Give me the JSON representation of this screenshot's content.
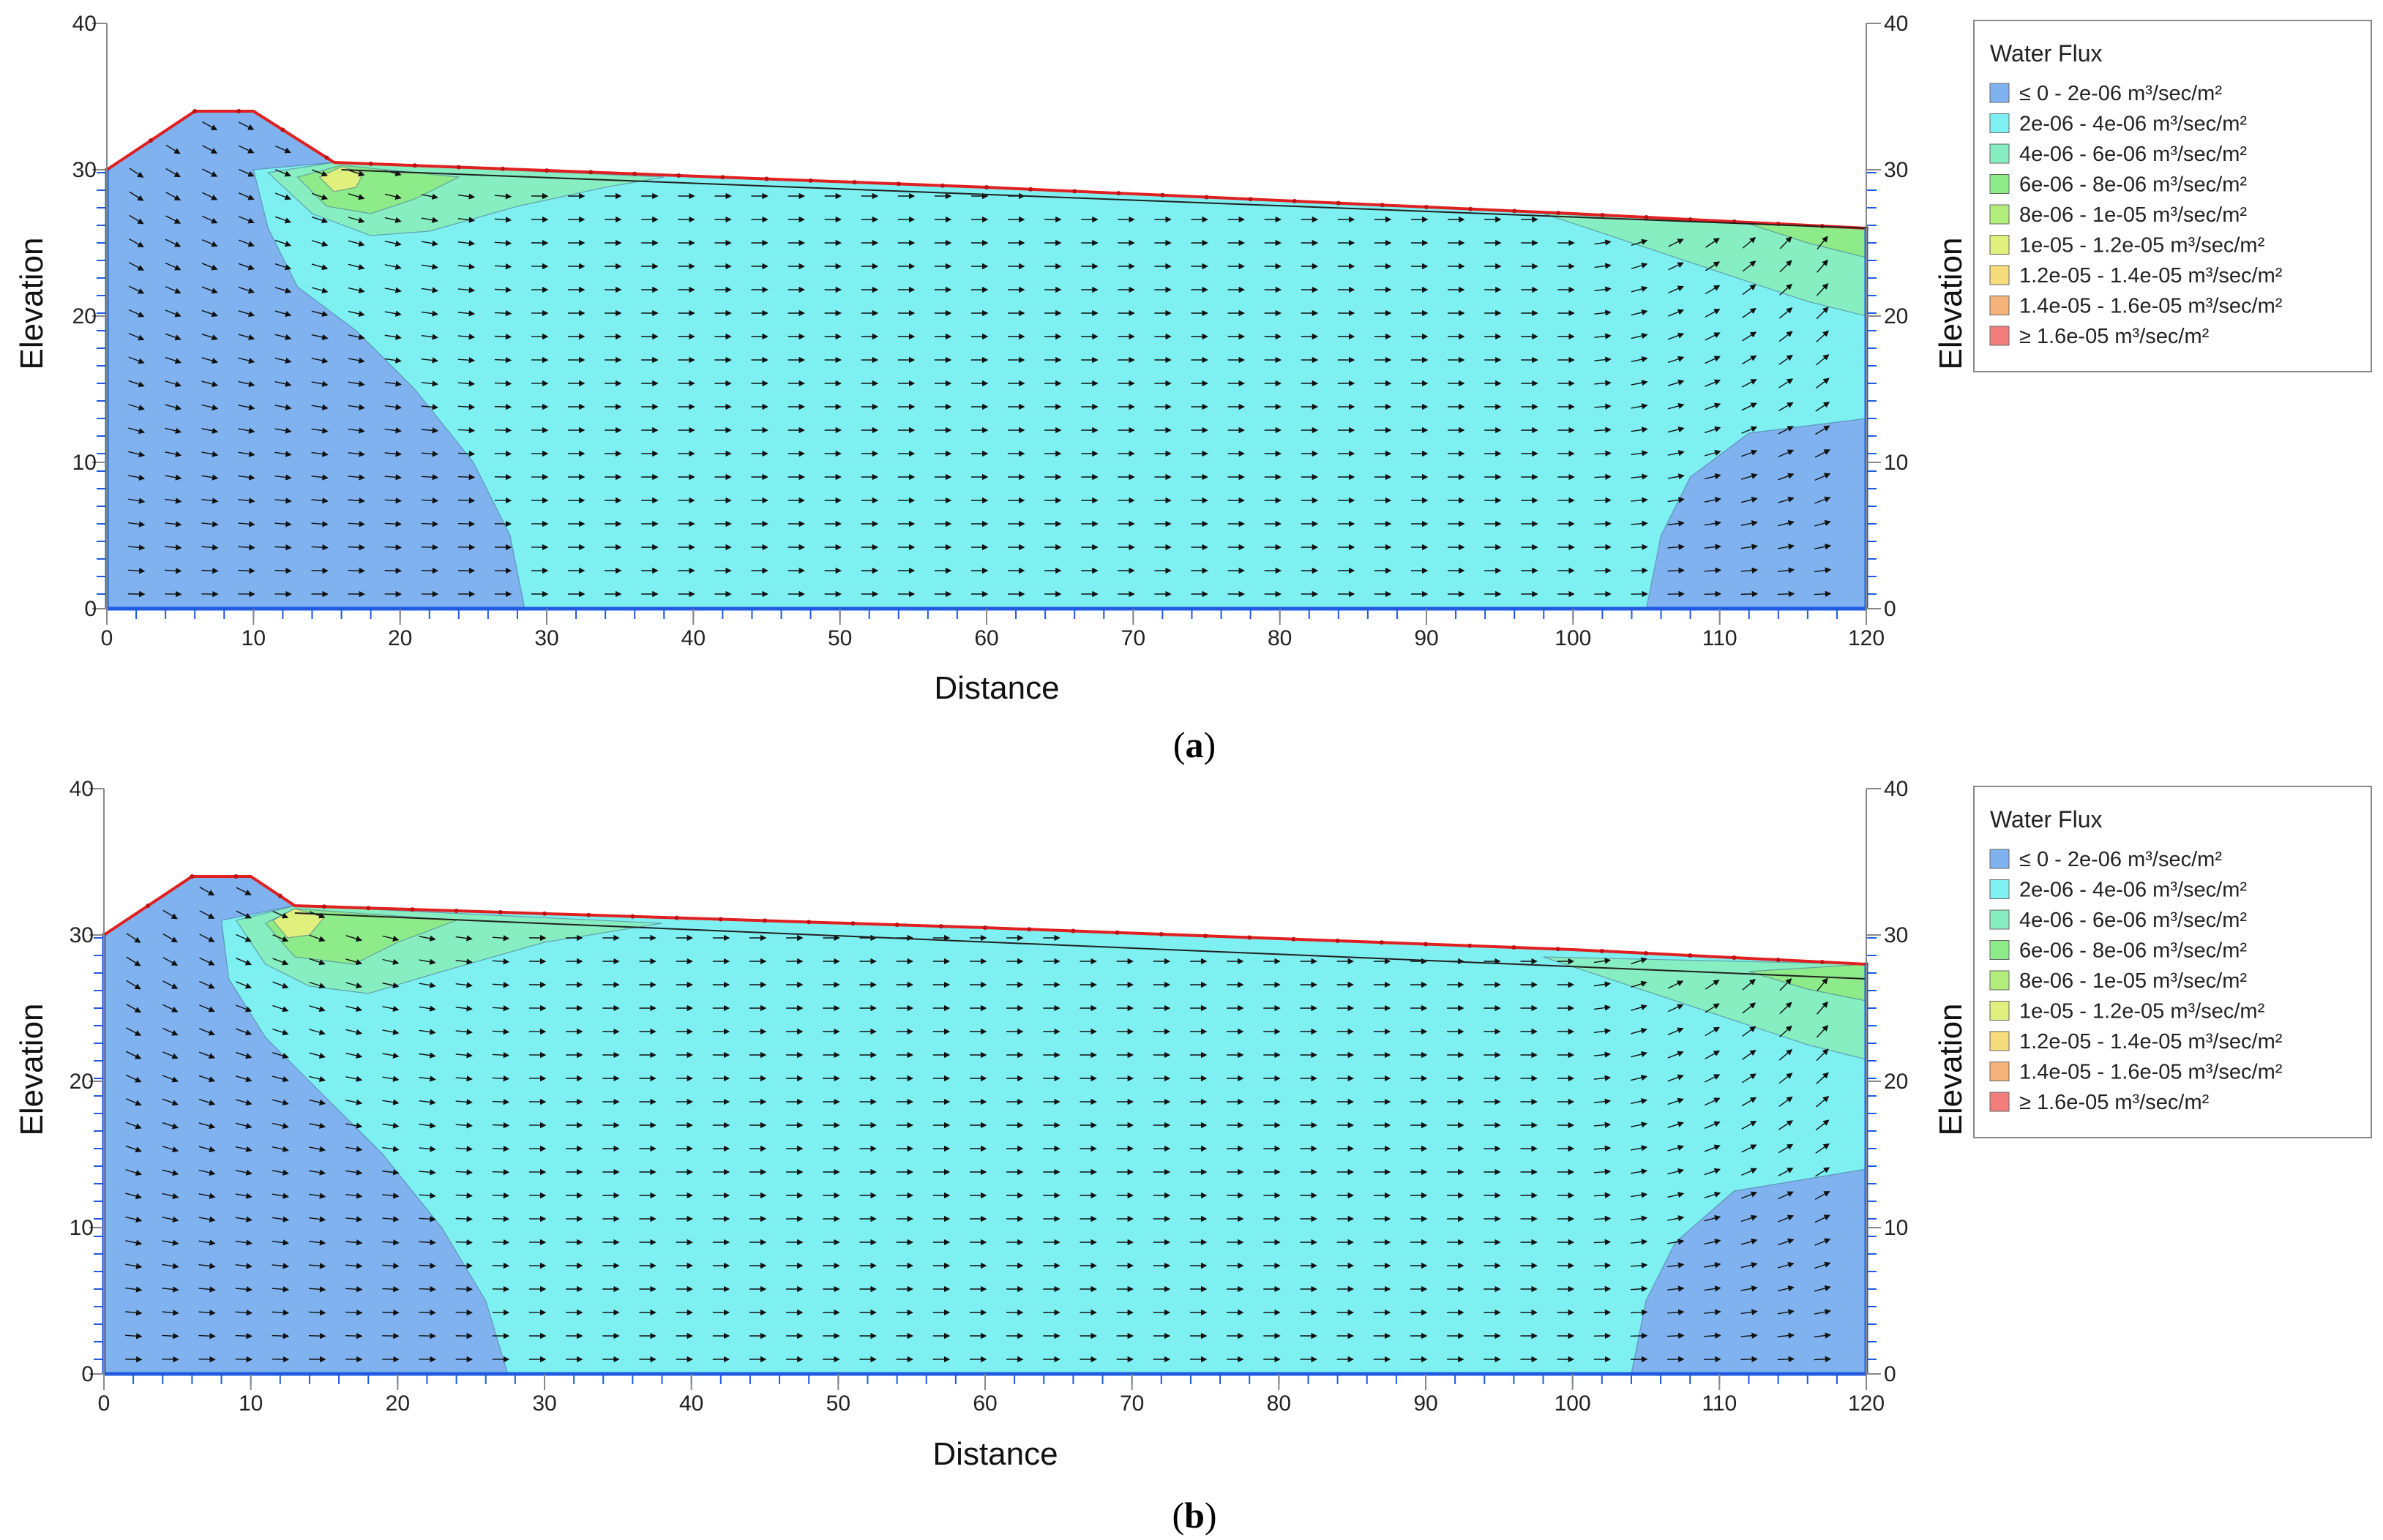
{
  "chart_data": [
    {
      "panel": "a",
      "type": "area",
      "caption": "a",
      "xlabel": "Distance",
      "ylabel_left": "Elevation",
      "ylabel_right": "Elevation",
      "xlim": [
        0,
        120
      ],
      "ylim": [
        0,
        40
      ],
      "x_ticks": [
        "0",
        "10",
        "20",
        "30",
        "40",
        "50",
        "60",
        "70",
        "80",
        "90",
        "100",
        "110",
        "120"
      ],
      "y_ticks": [
        "0",
        "10",
        "20",
        "30",
        "40"
      ],
      "legend_position": "right",
      "legend_title": "Water Flux",
      "legend": [
        {
          "label": "≤ 0 - 2e-06 m³/sec/m²",
          "color": "#7fb2ee"
        },
        {
          "label": "2e-06 - 4e-06 m³/sec/m²",
          "color": "#7ff0f2"
        },
        {
          "label": "4e-06 - 6e-06 m³/sec/m²",
          "color": "#86eec0"
        },
        {
          "label": "6e-06 - 8e-06 m³/sec/m²",
          "color": "#8deb8a"
        },
        {
          "label": "8e-06 - 1e-05 m³/sec/m²",
          "color": "#b2ee7c"
        },
        {
          "label": "1e-05 - 1.2e-05 m³/sec/m²",
          "color": "#dff07c"
        },
        {
          "label": "1.2e-05 - 1.4e-05 m³/sec/m²",
          "color": "#f6dc7a"
        },
        {
          "label": "1.4e-05 - 1.6e-05 m³/sec/m²",
          "color": "#f5b27a"
        },
        {
          "label": "≥ 1.6e-05 m³/sec/m²",
          "color": "#f27d7a"
        }
      ],
      "ground_surface": [
        [
          0,
          30
        ],
        [
          3,
          32
        ],
        [
          6,
          34
        ],
        [
          10,
          34
        ],
        [
          15.5,
          30.5
        ],
        [
          60,
          28.8
        ],
        [
          100,
          27
        ],
        [
          120,
          26
        ]
      ],
      "seepage_face_top": [
        [
          16,
          30
        ],
        [
          120,
          26
        ]
      ],
      "zones": [
        {
          "name": "low-flux-left",
          "level": 0,
          "boundary": [
            [
              0,
              0
            ],
            [
              0,
              30
            ],
            [
              3,
              32
            ],
            [
              6,
              34
            ],
            [
              10,
              34
            ],
            [
              15.5,
              30.5
            ],
            [
              10,
              30
            ],
            [
              11,
              26
            ],
            [
              13,
              22
            ],
            [
              17,
              19
            ],
            [
              21,
              15
            ],
            [
              25,
              10
            ],
            [
              27.5,
              5
            ],
            [
              28.5,
              0
            ]
          ]
        },
        {
          "name": "low-flux-right",
          "level": 0,
          "boundary": [
            [
              105,
              0
            ],
            [
              106,
              5
            ],
            [
              108,
              9
            ],
            [
              112,
              12
            ],
            [
              120,
              13
            ],
            [
              120,
              0
            ]
          ]
        },
        {
          "name": "flux-band-upstream",
          "level": 2,
          "boundary": [
            [
              11,
              29.8
            ],
            [
              14,
              27
            ],
            [
              18,
              25.5
            ],
            [
              22,
              25.8
            ],
            [
              28,
              27.5
            ],
            [
              34,
              28.8
            ],
            [
              38,
              29.5
            ],
            [
              15.5,
              30.5
            ]
          ]
        },
        {
          "name": "flux-band-upstream-inner",
          "level": 3,
          "boundary": [
            [
              13,
              29.5
            ],
            [
              15,
              27.5
            ],
            [
              18,
              27
            ],
            [
              21,
              28
            ],
            [
              24,
              29.5
            ],
            [
              16,
              30.3
            ]
          ]
        },
        {
          "name": "flux-core-upstream",
          "level": 5,
          "boundary": [
            [
              14.5,
              29.5
            ],
            [
              15.5,
              28.5
            ],
            [
              17,
              28.8
            ],
            [
              17.5,
              29.8
            ],
            [
              16,
              30.2
            ]
          ]
        },
        {
          "name": "flux-band-downstream",
          "level": 2,
          "boundary": [
            [
              98,
              27
            ],
            [
              104,
              25
            ],
            [
              110,
              23
            ],
            [
              116,
              21
            ],
            [
              120,
              20
            ],
            [
              120,
              26
            ]
          ]
        },
        {
          "name": "flux-band-downstream-inner",
          "level": 3,
          "boundary": [
            [
              112,
              26.3
            ],
            [
              116,
              25
            ],
            [
              120,
              24
            ],
            [
              120,
              26
            ]
          ]
        }
      ]
    },
    {
      "panel": "b",
      "type": "area",
      "caption": "b",
      "xlabel": "Distance",
      "ylabel_left": "Elevation",
      "ylabel_right": "Elevation",
      "xlim": [
        0,
        120
      ],
      "ylim": [
        0,
        40
      ],
      "x_ticks": [
        "0",
        "10",
        "20",
        "30",
        "40",
        "50",
        "60",
        "70",
        "80",
        "90",
        "100",
        "110",
        "120"
      ],
      "y_ticks": [
        "0",
        "10",
        "20",
        "30",
        "40"
      ],
      "legend_position": "right",
      "legend_title": "Water Flux",
      "legend": [
        {
          "label": "≤ 0 - 2e-06 m³/sec/m²",
          "color": "#7fb2ee"
        },
        {
          "label": "2e-06 - 4e-06 m³/sec/m²",
          "color": "#7ff0f2"
        },
        {
          "label": "4e-06 - 6e-06 m³/sec/m²",
          "color": "#86eec0"
        },
        {
          "label": "6e-06 - 8e-06 m³/sec/m²",
          "color": "#8deb8a"
        },
        {
          "label": "8e-06 - 1e-05 m³/sec/m²",
          "color": "#b2ee7c"
        },
        {
          "label": "1e-05 - 1.2e-05 m³/sec/m²",
          "color": "#dff07c"
        },
        {
          "label": "1.2e-05 - 1.4e-05 m³/sec/m²",
          "color": "#f6dc7a"
        },
        {
          "label": "1.4e-05 - 1.6e-05 m³/sec/m²",
          "color": "#f5b27a"
        },
        {
          "label": "≥ 1.6e-05 m³/sec/m²",
          "color": "#f27d7a"
        }
      ],
      "ground_surface": [
        [
          0,
          30
        ],
        [
          3,
          32
        ],
        [
          6,
          34
        ],
        [
          10,
          34
        ],
        [
          13,
          32
        ],
        [
          60,
          30.5
        ],
        [
          100,
          29
        ],
        [
          120,
          28
        ]
      ],
      "seepage_face_top": [
        [
          13,
          31.5
        ],
        [
          120,
          27
        ]
      ],
      "zones": [
        {
          "name": "low-flux-left",
          "level": 0,
          "boundary": [
            [
              0,
              0
            ],
            [
              0,
              30
            ],
            [
              3,
              32
            ],
            [
              6,
              34
            ],
            [
              10,
              34
            ],
            [
              13,
              32
            ],
            [
              8,
              31
            ],
            [
              8.5,
              27
            ],
            [
              11,
              23
            ],
            [
              15,
              19
            ],
            [
              19,
              15
            ],
            [
              23,
              10
            ],
            [
              26,
              5
            ],
            [
              27.5,
              0
            ]
          ]
        },
        {
          "name": "low-flux-right",
          "level": 0,
          "boundary": [
            [
              104,
              0
            ],
            [
              105,
              5
            ],
            [
              107,
              9
            ],
            [
              111,
              12.5
            ],
            [
              120,
              14
            ],
            [
              120,
              0
            ]
          ]
        },
        {
          "name": "flux-band-upstream",
          "level": 2,
          "boundary": [
            [
              9,
              31
            ],
            [
              11,
              28
            ],
            [
              14,
              26.5
            ],
            [
              18,
              26
            ],
            [
              23,
              27.5
            ],
            [
              30,
              29.5
            ],
            [
              38,
              30.8
            ],
            [
              13,
              32
            ]
          ]
        },
        {
          "name": "flux-band-upstream-inner",
          "level": 3,
          "boundary": [
            [
              11,
              30.8
            ],
            [
              13,
              28.5
            ],
            [
              17,
              28
            ],
            [
              20,
              29.5
            ],
            [
              24,
              31
            ],
            [
              13,
              31.8
            ]
          ]
        },
        {
          "name": "flux-core-upstream",
          "level": 5,
          "boundary": [
            [
              11.5,
              31
            ],
            [
              12.5,
              29.8
            ],
            [
              14,
              30
            ],
            [
              15,
              31.2
            ],
            [
              13,
              31.8
            ]
          ]
        },
        {
          "name": "flux-band-downstream",
          "level": 2,
          "boundary": [
            [
              98,
              28.5
            ],
            [
              104,
              26.5
            ],
            [
              110,
              24.5
            ],
            [
              116,
              22.5
            ],
            [
              120,
              21.5
            ],
            [
              120,
              28
            ]
          ]
        },
        {
          "name": "flux-band-downstream-inner",
          "level": 3,
          "boundary": [
            [
              112,
              27.5
            ],
            [
              116,
              26.3
            ],
            [
              120,
              25.5
            ],
            [
              120,
              28
            ]
          ]
        }
      ]
    }
  ]
}
